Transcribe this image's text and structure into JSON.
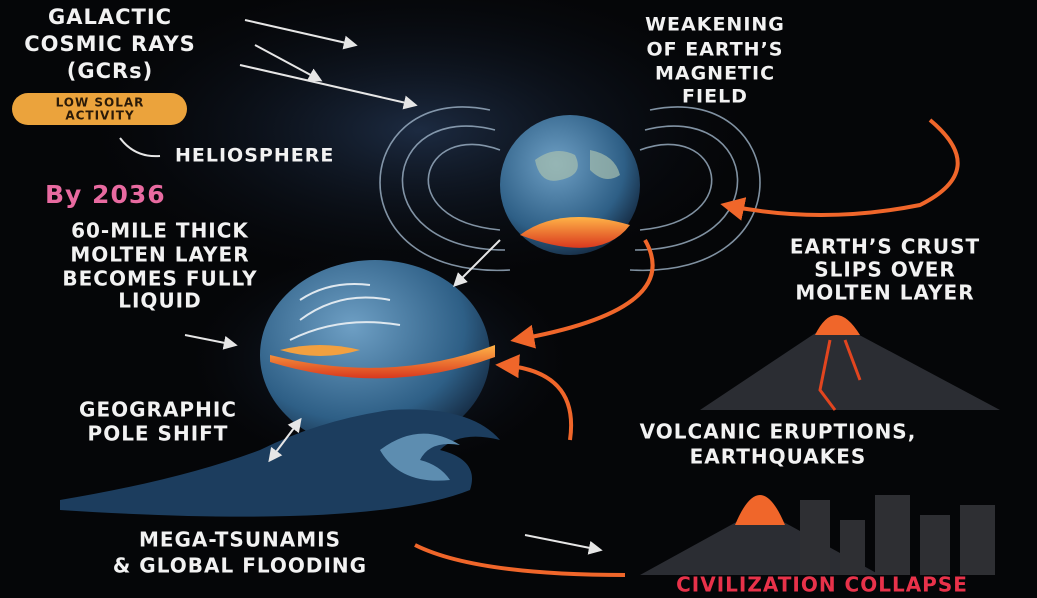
{
  "cosmic_rays": {
    "lines": [
      "GALACTIC",
      "COSMIC RAYS",
      "(GCRs)"
    ]
  },
  "solar_activity": {
    "lines": [
      "LOW SOLAR",
      "ACTIVITY"
    ]
  },
  "heliosphere": {
    "lines": [
      "HELIOSPHERE"
    ]
  },
  "magnetic_field": {
    "lines": [
      "WEAKENING",
      "OF EARTH’S",
      "MAGNETIC",
      "FIELD"
    ]
  },
  "year": {
    "lines": [
      "By 2036"
    ]
  },
  "molten_layer": {
    "lines": [
      "60-MILE THICK",
      "MOLTEN LAYER",
      "BECOMES FULLY",
      "LIQUID"
    ]
  },
  "crust_slip": {
    "lines": [
      "EARTH’S CRUST",
      "SLIPS OVER",
      "MOLTEN LAYER"
    ]
  },
  "pole_shift": {
    "lines": [
      "GEOGRAPHIC",
      "POLE SHIFT"
    ]
  },
  "eruptions": {
    "lines": [
      "VOLCANIC ERUPTIONS,",
      "EARTHQUAKES"
    ]
  },
  "tsunamis": {
    "lines": [
      "MEGA-TSUNAMIS",
      "& GLOBAL FLOODING"
    ]
  },
  "collapse": {
    "lines": [
      "CIVILIZATION COLLAPSE"
    ]
  }
}
